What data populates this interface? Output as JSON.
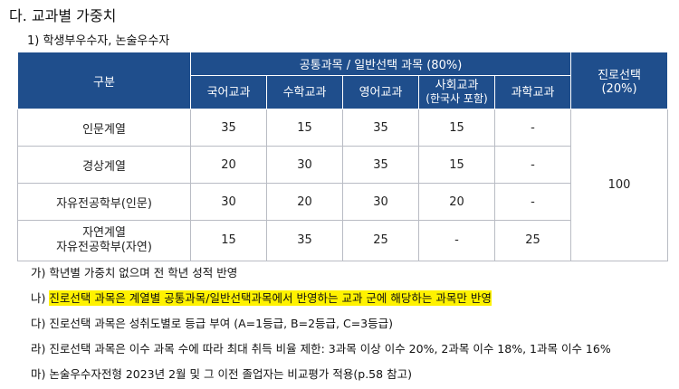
{
  "section_title": "다. 교과별 가중치",
  "subsection_title": "1) 학생부우수자, 논술우수자",
  "table": {
    "header": {
      "category": "구분",
      "common_group": "공통과목 / 일반선택 과목 (80%)",
      "career_line1": "진로선택",
      "career_line2": "(20%)",
      "subjects": [
        "국어교과",
        "수학교과",
        "영어교과",
        "사회교과",
        "과학교과"
      ],
      "social_sub": "(한국사 포함)"
    },
    "rows": [
      {
        "name": "인문계열",
        "values": [
          "35",
          "15",
          "35",
          "15",
          "-"
        ]
      },
      {
        "name": "경상계열",
        "values": [
          "20",
          "30",
          "35",
          "15",
          "-"
        ]
      },
      {
        "name": "자유전공학부(인문)",
        "values": [
          "30",
          "20",
          "30",
          "20",
          "-"
        ]
      },
      {
        "name_line1": "자연계열",
        "name_line2": "자유전공학부(자연)",
        "values": [
          "15",
          "35",
          "25",
          "-",
          "25"
        ]
      }
    ],
    "career_value": "100"
  },
  "notes": {
    "n1_prefix": "가) ",
    "n1_text": "학년별 가중치 없으며 전 학년 성적 반영",
    "n2_prefix": "나) ",
    "n2_text": "진로선택 과목은 계열별 공통과목/일반선택과목에서 반영하는 교과 군에 해당하는 과목만 반영",
    "n3": "다) 진로선택 과목은 성취도별로 등급 부여 (A=1등급, B=2등급, C=3등급)",
    "n4": "라) 진로선택 과목은 이수 과목 수에 따라 최대 취득 비율 제한: 3과목 이상 이수 20%, 2과목 이수 18%, 1과목 이수 16%",
    "n5": "마) 논술우수자전형 2023년 2월 및 그 이전 졸업자는 비교평가 적용(p.58 참고)"
  },
  "colors": {
    "header_bg": "#1f4e8c",
    "highlight": "#fff200"
  }
}
